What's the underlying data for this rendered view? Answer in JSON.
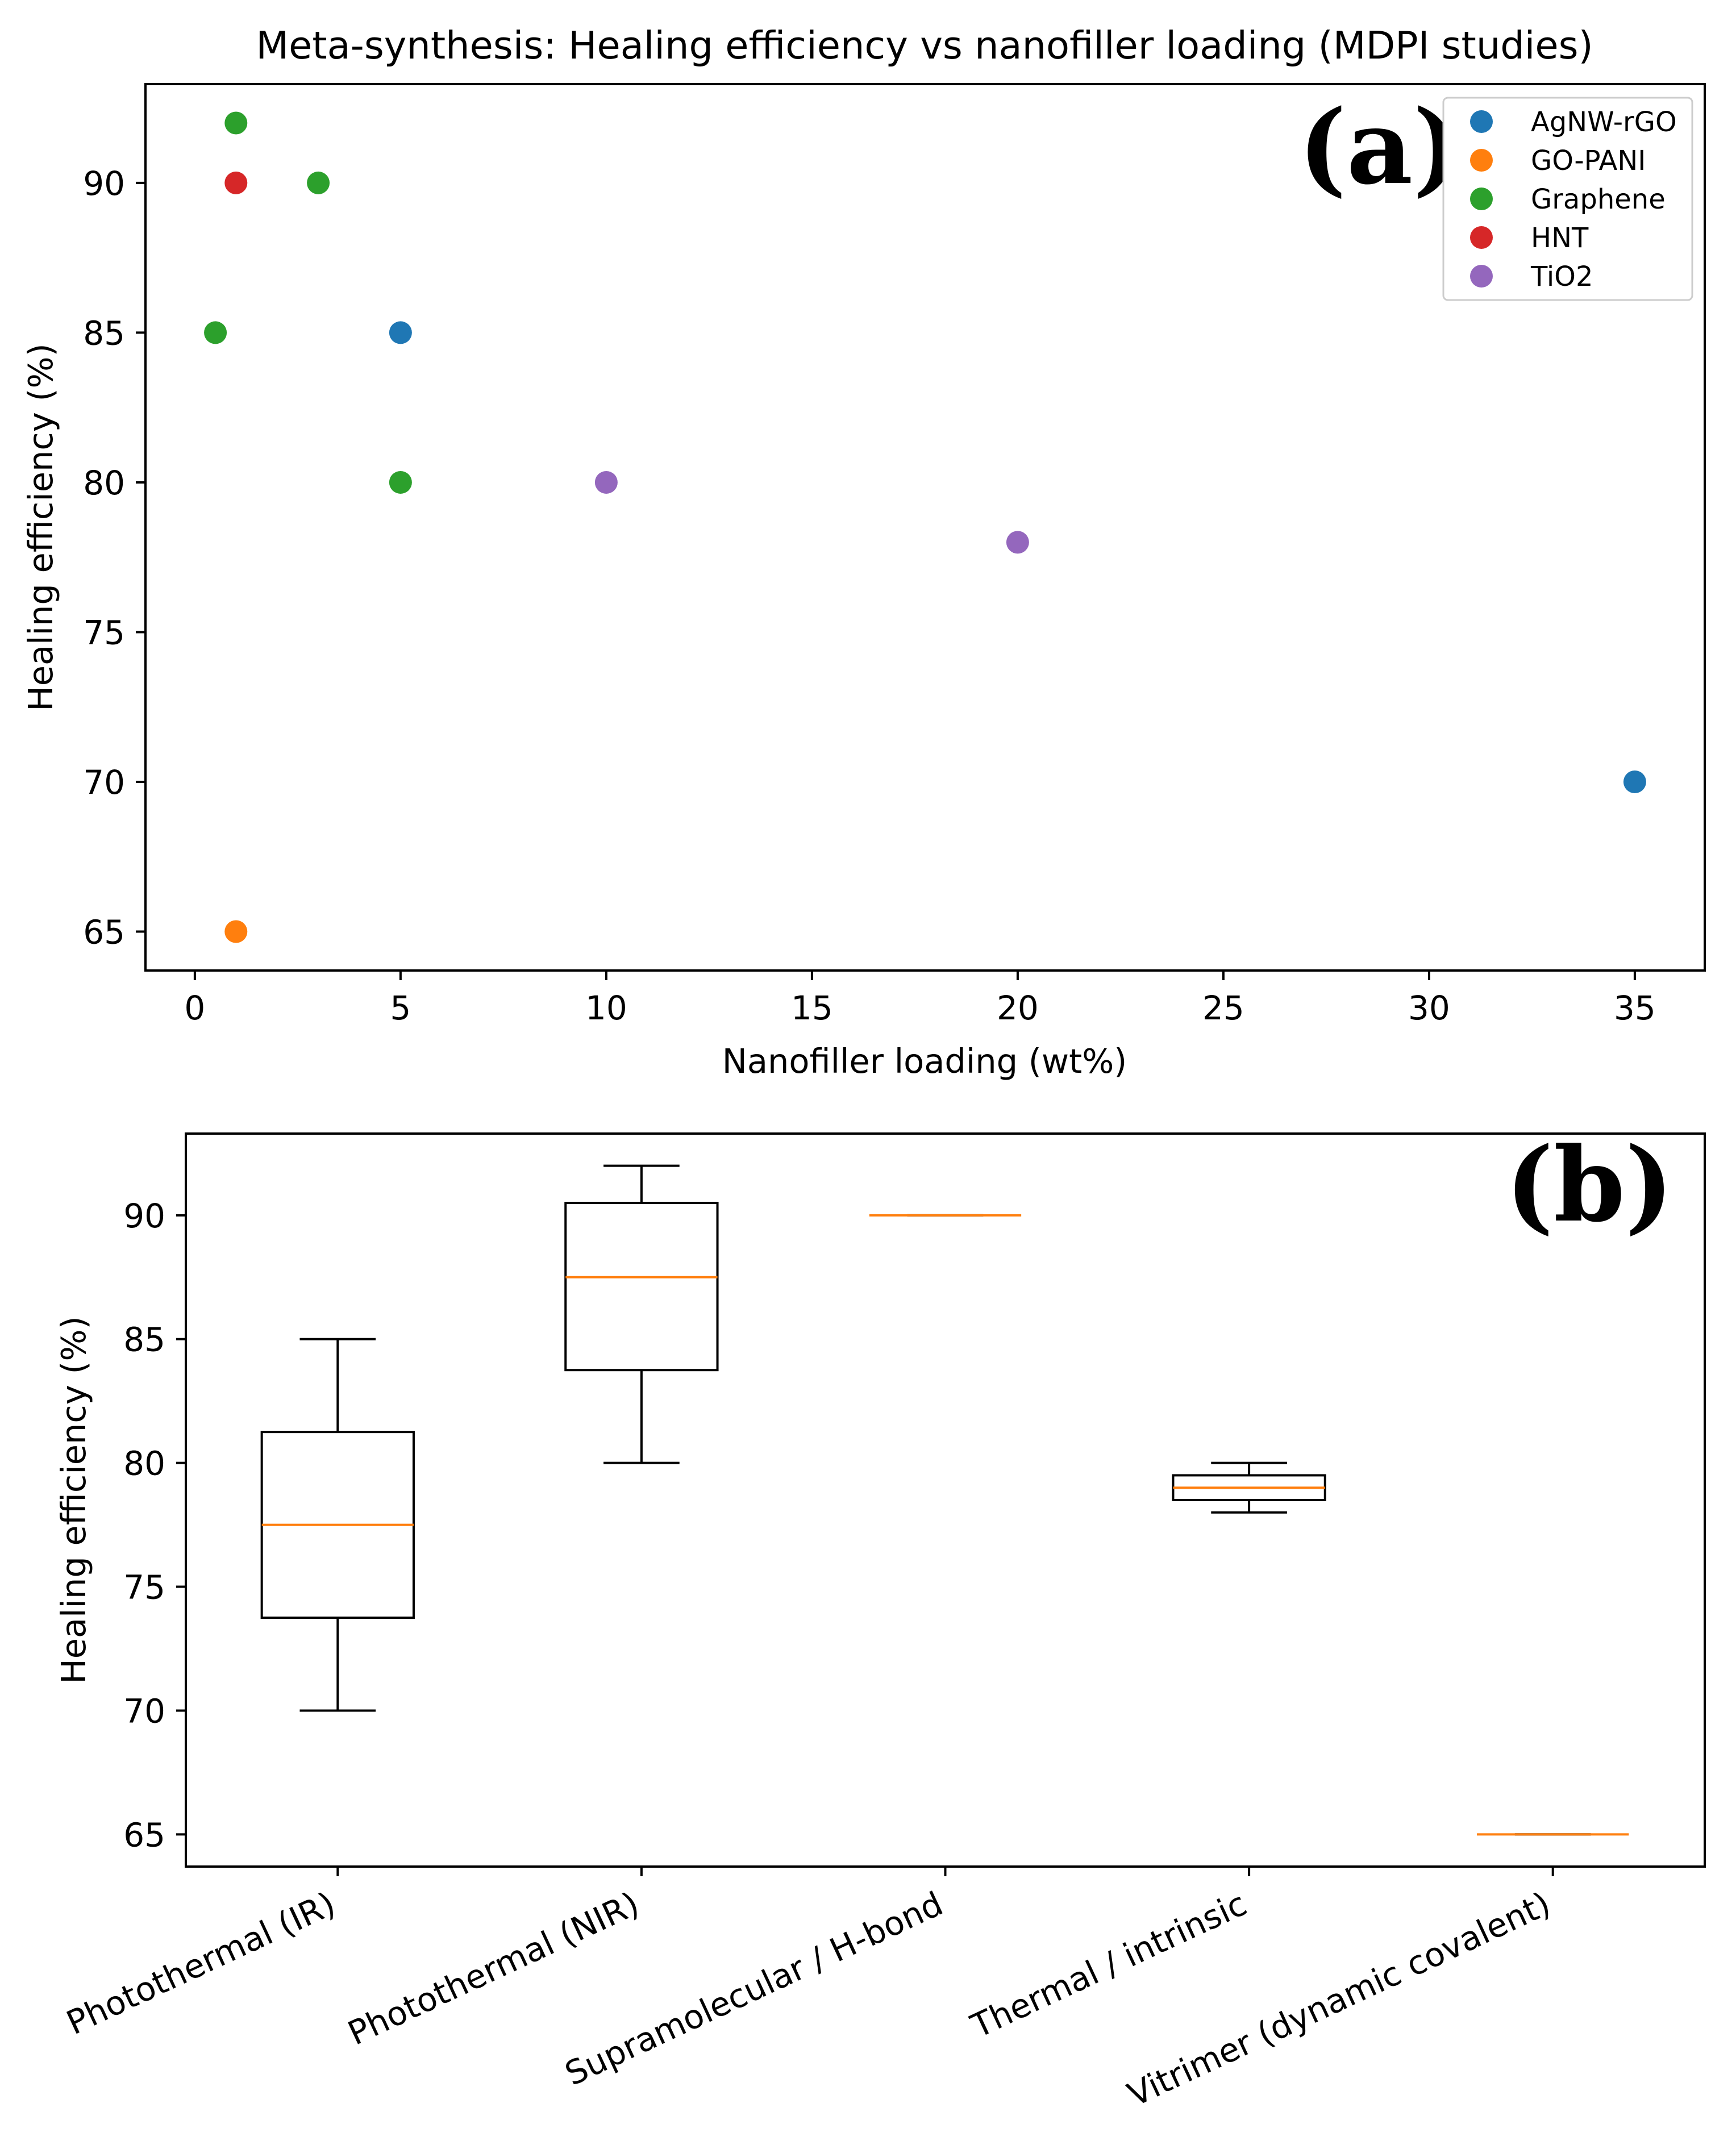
{
  "chart_data": [
    {
      "type": "scatter",
      "panel_label": "(a)",
      "title": "Meta-synthesis: Healing efficiency vs nanofiller loading (MDPI studies)",
      "xlabel": "Nanofiller loading (wt%)",
      "ylabel": "Healing efficiency (%)",
      "xlim": [
        -1.2,
        36.7
      ],
      "ylim": [
        63.7,
        93.3
      ],
      "xticks": [
        0,
        5,
        10,
        15,
        20,
        25,
        30,
        35
      ],
      "yticks": [
        65,
        70,
        75,
        80,
        85,
        90
      ],
      "legend_position": "top-right",
      "series": [
        {
          "name": "AgNW-rGO",
          "color": "#1f77b4",
          "points": [
            [
              5,
              85
            ],
            [
              35,
              70
            ]
          ]
        },
        {
          "name": "GO-PANI",
          "color": "#ff7f0e",
          "points": [
            [
              1,
              65
            ]
          ]
        },
        {
          "name": "Graphene",
          "color": "#2ca02c",
          "points": [
            [
              1,
              92
            ],
            [
              3,
              90
            ],
            [
              0.5,
              85
            ],
            [
              5,
              80
            ]
          ]
        },
        {
          "name": "HNT",
          "color": "#d62728",
          "points": [
            [
              1,
              90
            ]
          ]
        },
        {
          "name": "TiO2",
          "color": "#9467bd",
          "points": [
            [
              10,
              80
            ],
            [
              20,
              78
            ]
          ]
        }
      ]
    },
    {
      "type": "box",
      "panel_label": "(b)",
      "title": "",
      "xlabel": "",
      "ylabel": "Healing efficiency (%)",
      "ylim": [
        63.7,
        93.3
      ],
      "yticks": [
        65,
        70,
        75,
        80,
        85,
        90
      ],
      "median_color": "#ff7f0e",
      "categories": [
        "Photothermal (IR)",
        "Photothermal (NIR)",
        "Supramolecular / H-bond",
        "Thermal / intrinsic",
        "Vitrimer (dynamic covalent)"
      ],
      "boxes": [
        {
          "whisker_low": 70,
          "q1": 73.75,
          "median": 77.5,
          "q3": 81.25,
          "whisker_high": 85
        },
        {
          "whisker_low": 80,
          "q1": 83.75,
          "median": 87.5,
          "q3": 90.5,
          "whisker_high": 92
        },
        {
          "whisker_low": 90,
          "q1": 90,
          "median": 90,
          "q3": 90,
          "whisker_high": 90
        },
        {
          "whisker_low": 78,
          "q1": 78.5,
          "median": 79,
          "q3": 79.5,
          "whisker_high": 80
        },
        {
          "whisker_low": 65,
          "q1": 65,
          "median": 65,
          "q3": 65,
          "whisker_high": 65
        }
      ]
    }
  ]
}
